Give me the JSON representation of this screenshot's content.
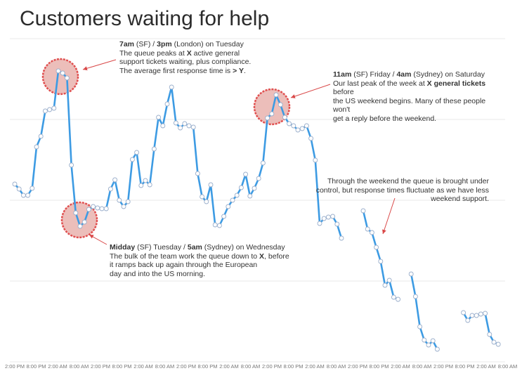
{
  "chart_data": {
    "type": "line",
    "title": "Customers waiting for help",
    "xlabel": "",
    "ylabel": "",
    "grid": true,
    "x_tick_labels": [
      "2:00 PM",
      "8:00 PM",
      "2:00 AM",
      "8:00 AM",
      "2:00 PM",
      "8:00 PM",
      "2:00 AM",
      "8:00 AM",
      "2:00 PM",
      "8:00 PM",
      "2:00 AM",
      "8:00 AM",
      "2:00 PM",
      "8:00 PM",
      "2:00 AM",
      "8:00 AM",
      "2:00 PM",
      "8:00 PM",
      "2:00 AM",
      "8:00 AM",
      "2:00 PM",
      "8:00 PM",
      "2:00 AM",
      "8:00 AM"
    ],
    "x_hours_per_tick": 6,
    "segments": [
      {
        "points": [
          [
            0,
            262
          ],
          [
            1,
            269
          ],
          [
            2,
            278
          ],
          [
            3,
            278
          ],
          [
            4,
            268
          ],
          [
            5,
            209
          ],
          [
            6,
            194
          ],
          [
            7,
            158
          ],
          [
            8,
            156
          ],
          [
            9,
            154
          ],
          [
            10,
            101
          ],
          [
            11,
            104
          ],
          [
            12,
            111
          ],
          [
            13,
            235
          ],
          [
            14,
            303
          ],
          [
            15,
            322
          ],
          [
            16,
            316
          ],
          [
            17,
            298
          ],
          [
            18,
            294
          ],
          [
            19,
            296
          ],
          [
            20,
            297
          ],
          [
            21,
            297
          ],
          [
            22,
            269
          ],
          [
            23,
            256
          ],
          [
            24,
            285
          ],
          [
            25,
            294
          ],
          [
            26,
            287
          ],
          [
            27,
            227
          ],
          [
            28,
            217
          ],
          [
            29,
            264
          ],
          [
            30,
            257
          ],
          [
            31,
            263
          ],
          [
            32,
            212
          ],
          [
            33,
            167
          ],
          [
            34,
            179
          ],
          [
            35,
            148
          ],
          [
            36,
            124
          ],
          [
            37,
            175
          ],
          [
            38,
            182
          ],
          [
            39,
            176
          ],
          [
            40,
            179
          ],
          [
            41,
            181
          ],
          [
            42,
            247
          ],
          [
            43,
            280
          ],
          [
            44,
            287
          ],
          [
            45,
            263
          ],
          [
            46,
            320
          ],
          [
            47,
            321
          ],
          [
            48,
            308
          ],
          [
            49,
            294
          ],
          [
            50,
            285
          ],
          [
            51,
            278
          ],
          [
            52,
            267
          ],
          [
            53,
            248
          ],
          [
            54,
            279
          ],
          [
            55,
            268
          ],
          [
            56,
            254
          ],
          [
            57,
            232
          ],
          [
            58,
            168
          ],
          [
            59,
            162
          ],
          [
            60,
            135
          ],
          [
            61,
            149
          ],
          [
            62,
            167
          ],
          [
            63,
            176
          ],
          [
            64,
            179
          ],
          [
            65,
            185
          ],
          [
            66,
            183
          ],
          [
            67,
            179
          ],
          [
            68,
            197
          ],
          [
            69,
            228
          ],
          [
            70,
            318
          ],
          [
            71,
            311
          ],
          [
            72,
            309
          ],
          [
            73,
            308
          ],
          [
            74,
            319
          ],
          [
            75,
            339
          ]
        ]
      },
      {
        "points": [
          [
            80,
            300
          ],
          [
            81,
            326
          ],
          [
            82,
            331
          ],
          [
            83,
            352
          ],
          [
            84,
            372
          ],
          [
            85,
            406
          ],
          [
            86,
            399
          ],
          [
            87,
            423
          ],
          [
            88,
            426
          ]
        ]
      },
      {
        "points": [
          [
            91,
            390
          ],
          [
            92,
            422
          ],
          [
            93,
            465
          ],
          [
            94,
            484
          ],
          [
            95,
            491
          ],
          [
            96,
            485
          ],
          [
            97,
            497
          ]
        ]
      },
      {
        "points": [
          [
            103,
            445
          ],
          [
            104,
            456
          ],
          [
            105,
            449
          ],
          [
            106,
            449
          ],
          [
            107,
            447
          ],
          [
            108,
            446
          ],
          [
            109,
            476
          ],
          [
            110,
            487
          ],
          [
            111,
            490
          ]
        ]
      }
    ],
    "highlight_circles": [
      {
        "label": "peak-tuesday",
        "color": "#e05050"
      },
      {
        "label": "trough-wednesday",
        "color": "#e05050"
      },
      {
        "label": "peak-friday",
        "color": "#e05050"
      }
    ],
    "line_color": "#3d9be3"
  },
  "annotations": {
    "peak1": {
      "b1": "7am",
      "t1": " (SF) / ",
      "b2": "3pm",
      "t2": " (London) on Tuesday",
      "l2a": "The queue peaks at ",
      "l2b": "X",
      "l2c": " active general",
      "l3": "support tickets waiting, plus compliance.",
      "l4a": "The average first response time is ",
      "l4b": "> Y",
      "l4c": "."
    },
    "trough": {
      "b1": "Midday",
      "t1": " (SF) Tuesday / ",
      "b2": "5am",
      "t2": " (Sydney) on Wednesday",
      "l2a": "The bulk of the team work the queue down to ",
      "l2b": "X",
      "l2c": ", before",
      "l3": "it ramps back up again through the European",
      "l4": "day and into the US morning."
    },
    "peak2": {
      "b1": "11am",
      "t1": " (SF) Friday / ",
      "b2": "4am",
      "t2": " (Sydney) on Saturday",
      "l2a": "Our last peak of the week at ",
      "l2b": "X general tickets",
      "l2c": " before",
      "l3": "the US weekend begins. Many of these people won't",
      "l4": "get a reply before the weekend."
    },
    "weekend": {
      "l1": "Through the weekend the queue is brought under",
      "l2": "control, but response times fluctuate as we have less",
      "l3": "weekend support."
    }
  }
}
